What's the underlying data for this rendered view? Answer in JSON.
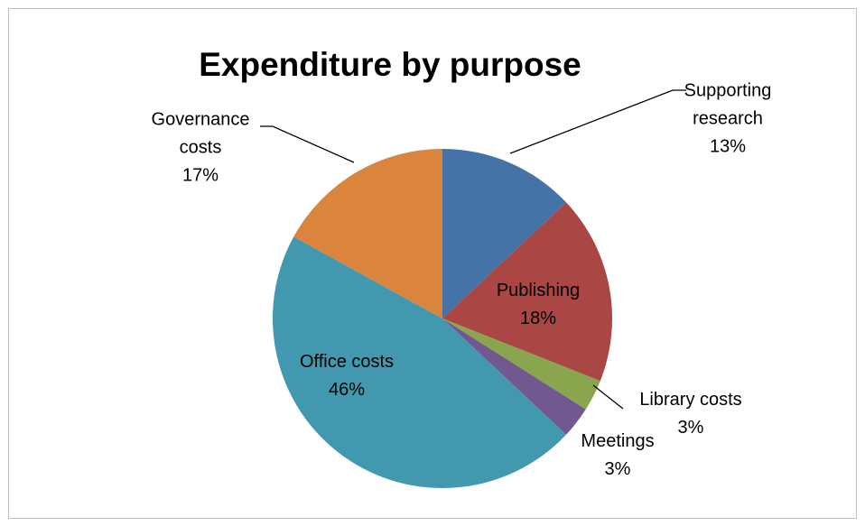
{
  "chart_data": {
    "type": "pie",
    "title": "Expenditure by purpose",
    "categories": [
      "Supporting research",
      "Publishing",
      "Library costs",
      "Meetings",
      "Office costs",
      "Governance costs"
    ],
    "values": [
      13,
      18,
      3,
      3,
      46,
      17
    ],
    "value_labels": [
      "13%",
      "18%",
      "3%",
      "3%",
      "46%",
      "17%"
    ],
    "colors": [
      "#4572a7",
      "#aa4643",
      "#89a54e",
      "#71588f",
      "#4198af",
      "#db843d"
    ]
  }
}
